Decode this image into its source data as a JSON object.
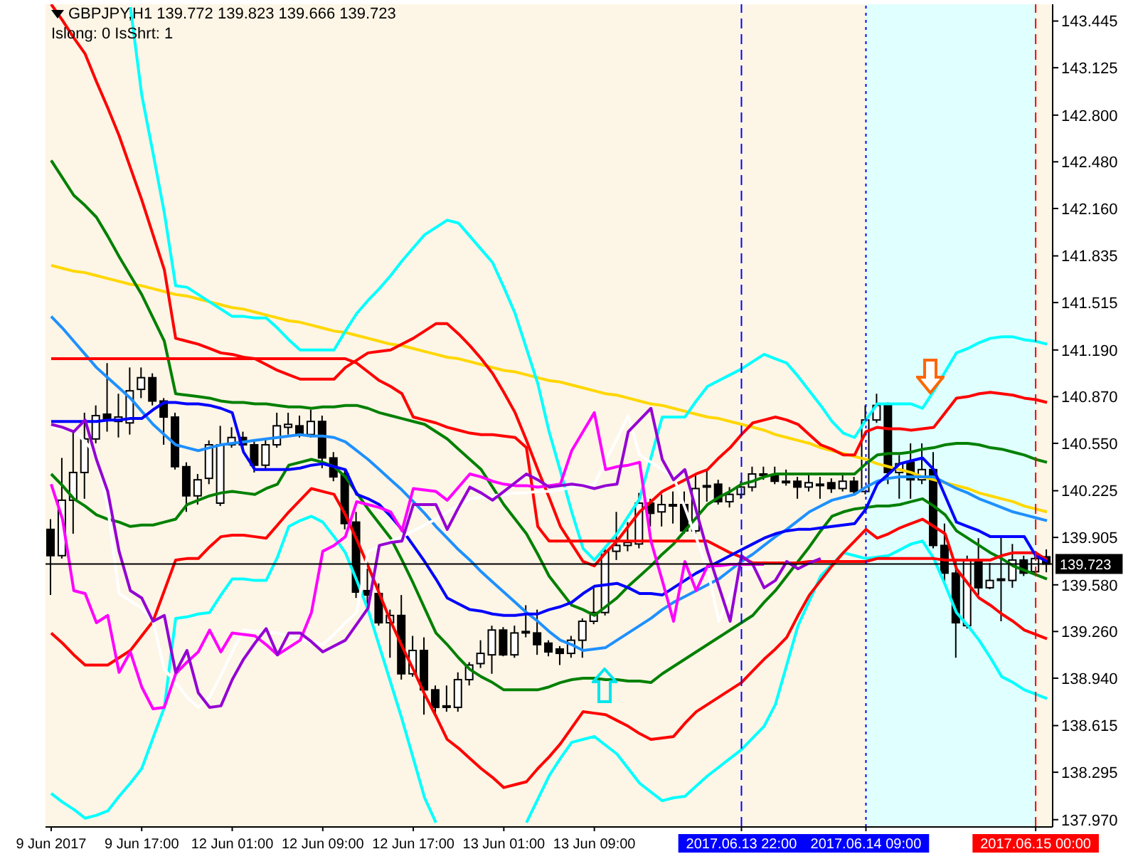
{
  "chart_data": {
    "type": "candlestick",
    "title": "GBPJPY,H1 139.772 139.823 139.666 139.723",
    "subtitle": "Islong: 0 IsShrt: 1",
    "color": "#000000",
    "categories": [
      "9 Jun 2017",
      null,
      null,
      null,
      null,
      null,
      null,
      null,
      "9 Jun 17:00",
      null,
      null,
      null,
      null,
      null,
      null,
      null,
      "12 Jun 01:00",
      null,
      null,
      null,
      null,
      null,
      null,
      null,
      "12 Jun 09:00",
      null,
      null,
      null,
      null,
      null,
      null,
      null,
      "12 Jun 17:00",
      null,
      null,
      null,
      null,
      null,
      null,
      null,
      "13 Jun 01:00",
      null,
      null,
      null,
      null,
      null,
      null,
      null,
      "13 Jun 09:00",
      null,
      null,
      null,
      null,
      null,
      null,
      null,
      null,
      null,
      null,
      null,
      null,
      "2017.06.13 22:00",
      null,
      null,
      null,
      null,
      null,
      null,
      null,
      null,
      null,
      null,
      "2017.06.14 09:00",
      null,
      null,
      null,
      null,
      null,
      null,
      null,
      null,
      null,
      null,
      null,
      null,
      null,
      null,
      "2017.06.15 00:00",
      null
    ],
    "ohlc": [
      [
        139.96,
        140.03,
        139.51,
        139.78
      ],
      [
        139.78,
        140.45,
        139.76,
        140.16
      ],
      [
        140.16,
        140.63,
        139.93,
        140.35
      ],
      [
        140.35,
        140.76,
        140.17,
        140.58
      ],
      [
        140.58,
        140.81,
        140.55,
        140.74
      ],
      [
        140.75,
        141.1,
        140.63,
        140.71
      ],
      [
        140.7,
        140.89,
        140.59,
        140.73
      ],
      [
        140.69,
        141.07,
        140.61,
        140.91
      ],
      [
        140.92,
        141.07,
        140.86,
        141.0
      ],
      [
        141.0,
        141.03,
        140.81,
        140.84
      ],
      [
        140.84,
        140.86,
        140.54,
        140.73
      ],
      [
        140.73,
        140.76,
        140.37,
        140.39
      ],
      [
        140.39,
        140.42,
        140.08,
        140.19
      ],
      [
        140.19,
        140.34,
        140.13,
        140.3
      ],
      [
        140.31,
        140.57,
        140.27,
        140.54
      ],
      [
        140.14,
        140.67,
        140.12,
        140.54
      ],
      [
        140.54,
        140.66,
        140.52,
        140.59
      ],
      [
        140.59,
        140.63,
        140.51,
        140.54
      ],
      [
        140.54,
        140.57,
        140.35,
        140.4
      ],
      [
        140.4,
        140.58,
        140.37,
        140.54
      ],
      [
        140.54,
        140.76,
        140.52,
        140.67
      ],
      [
        140.66,
        140.76,
        140.61,
        140.68
      ],
      [
        140.67,
        140.74,
        140.59,
        140.61
      ],
      [
        140.61,
        140.78,
        140.59,
        140.7
      ],
      [
        140.7,
        140.74,
        140.38,
        140.45
      ],
      [
        140.45,
        140.49,
        140.29,
        140.32
      ],
      [
        140.34,
        140.37,
        139.96,
        140.0
      ],
      [
        140.01,
        140.08,
        139.49,
        139.53
      ],
      [
        139.54,
        139.69,
        139.44,
        139.51
      ],
      [
        139.52,
        139.59,
        139.3,
        139.32
      ],
      [
        139.32,
        139.41,
        139.08,
        139.37
      ],
      [
        139.37,
        139.51,
        138.93,
        138.97
      ],
      [
        138.97,
        139.23,
        138.95,
        139.13
      ],
      [
        139.13,
        139.22,
        138.69,
        138.86
      ],
      [
        138.86,
        138.89,
        138.68,
        138.74
      ],
      [
        138.75,
        138.89,
        138.71,
        138.74
      ],
      [
        138.74,
        138.98,
        138.71,
        138.93
      ],
      [
        138.93,
        139.05,
        138.89,
        139.03
      ],
      [
        139.04,
        139.2,
        139.01,
        139.11
      ],
      [
        139.1,
        139.3,
        138.97,
        139.27
      ],
      [
        139.27,
        139.29,
        139.09,
        139.1
      ],
      [
        139.1,
        139.3,
        139.08,
        139.25
      ],
      [
        139.26,
        139.44,
        139.22,
        139.25
      ],
      [
        139.25,
        139.41,
        139.1,
        139.17
      ],
      [
        139.18,
        139.2,
        139.09,
        139.12
      ],
      [
        139.14,
        139.16,
        139.03,
        139.11
      ],
      [
        139.11,
        139.23,
        139.08,
        139.2
      ],
      [
        139.2,
        139.35,
        139.08,
        139.33
      ],
      [
        139.33,
        139.57,
        139.31,
        139.39
      ],
      [
        139.39,
        139.83,
        139.37,
        139.81
      ],
      [
        139.81,
        140.08,
        139.75,
        139.85
      ],
      [
        139.85,
        140.01,
        139.81,
        139.87
      ],
      [
        139.86,
        140.21,
        139.83,
        140.14
      ],
      [
        140.14,
        140.17,
        139.98,
        140.07
      ],
      [
        140.08,
        140.2,
        139.98,
        140.13
      ],
      [
        140.13,
        140.22,
        140.0,
        140.12
      ],
      [
        140.13,
        140.22,
        139.93,
        139.95
      ],
      [
        139.95,
        140.34,
        139.9,
        140.24
      ],
      [
        140.25,
        140.37,
        140.15,
        140.26
      ],
      [
        140.27,
        140.3,
        140.13,
        140.15
      ],
      [
        140.15,
        140.25,
        140.11,
        140.2
      ],
      [
        140.2,
        140.29,
        140.17,
        140.25
      ],
      [
        140.25,
        140.39,
        140.22,
        140.34
      ],
      [
        140.33,
        140.39,
        140.3,
        140.34
      ],
      [
        140.33,
        140.39,
        140.27,
        140.29
      ],
      [
        140.29,
        140.37,
        140.26,
        140.28
      ],
      [
        140.29,
        140.32,
        140.17,
        140.25
      ],
      [
        140.25,
        140.34,
        140.22,
        140.28
      ],
      [
        140.26,
        140.32,
        140.17,
        140.27
      ],
      [
        140.28,
        140.31,
        140.21,
        140.24
      ],
      [
        140.24,
        140.33,
        140.22,
        140.29
      ],
      [
        140.29,
        140.32,
        140.2,
        140.22
      ],
      [
        140.22,
        140.81,
        140.2,
        140.71
      ],
      [
        140.71,
        140.89,
        140.69,
        140.81
      ],
      [
        140.81,
        140.83,
        140.27,
        140.35
      ],
      [
        140.35,
        140.47,
        140.17,
        140.41
      ],
      [
        140.42,
        140.55,
        140.17,
        140.3
      ],
      [
        140.3,
        140.55,
        140.27,
        140.37
      ],
      [
        140.37,
        140.49,
        139.83,
        139.85
      ],
      [
        139.85,
        140.0,
        139.59,
        139.66
      ],
      [
        139.66,
        139.74,
        139.08,
        139.32
      ],
      [
        139.3,
        139.78,
        139.28,
        139.75
      ],
      [
        139.75,
        139.9,
        139.51,
        139.56
      ],
      [
        139.56,
        139.73,
        139.55,
        139.61
      ],
      [
        139.61,
        139.91,
        139.33,
        139.62
      ],
      [
        139.61,
        139.86,
        139.56,
        139.75
      ],
      [
        139.75,
        139.78,
        139.64,
        139.66
      ],
      [
        139.67,
        139.8,
        139.66,
        139.76
      ],
      [
        139.772,
        139.823,
        139.666,
        139.723
      ]
    ],
    "ylim": [
      137.92,
      143.56
    ],
    "yticks": [
      {
        "value": 137.97,
        "label": "137.970"
      },
      {
        "value": 138.295,
        "label": "138.295"
      },
      {
        "value": 138.615,
        "label": "138.615"
      },
      {
        "value": 138.94,
        "label": "138.940"
      },
      {
        "value": 139.26,
        "label": "139.260"
      },
      {
        "value": 139.58,
        "label": "139.580"
      },
      {
        "value": 139.905,
        "label": "139.905"
      },
      {
        "value": 140.225,
        "label": "140.225"
      },
      {
        "value": 140.55,
        "label": "140.550"
      },
      {
        "value": 140.87,
        "label": "140.870"
      },
      {
        "value": 141.19,
        "label": "141.190"
      },
      {
        "value": 141.515,
        "label": "141.515"
      },
      {
        "value": 141.835,
        "label": "141.835"
      },
      {
        "value": 142.16,
        "label": "142.160"
      },
      {
        "value": 142.48,
        "label": "142.480"
      },
      {
        "value": 142.8,
        "label": "142.800"
      },
      {
        "value": 143.125,
        "label": "143.125"
      },
      {
        "value": 143.445,
        "label": "143.445"
      }
    ],
    "marker": "none",
    "series": [
      {
        "type": "line",
        "color": "#ffd700",
        "values": [
          141.77,
          141.75,
          141.73,
          141.72,
          141.7,
          141.68,
          141.66,
          141.64,
          141.63,
          141.61,
          141.59,
          141.57,
          141.56,
          141.54,
          141.52,
          141.5,
          141.48,
          141.47,
          141.45,
          141.43,
          141.41,
          141.39,
          141.38,
          141.36,
          141.34,
          141.32,
          141.31,
          141.29,
          141.27,
          141.25,
          141.23,
          141.22,
          141.2,
          141.18,
          141.16,
          141.14,
          141.13,
          141.11,
          141.09,
          141.07,
          141.05,
          141.04,
          141.02,
          141.0,
          140.98,
          140.97,
          140.95,
          140.93,
          140.91,
          140.89,
          140.88,
          140.86,
          140.84,
          140.82,
          140.81,
          140.79,
          140.77,
          140.75,
          140.73,
          140.72,
          140.7,
          140.68,
          140.66,
          140.64,
          140.61,
          140.59,
          140.57,
          140.55,
          140.52,
          140.5,
          140.48,
          140.46,
          140.44,
          140.41,
          140.39,
          140.37,
          140.35,
          140.32,
          140.3,
          140.28,
          140.26,
          140.24,
          140.21,
          140.19,
          140.17,
          140.15,
          140.12,
          140.1,
          140.08
        ]
      },
      {
        "type": "line",
        "color": "#00ffff",
        "values": [
          null,
          null,
          null,
          null,
          null,
          null,
          null,
          143.54,
          142.94,
          142.54,
          142.13,
          141.63,
          141.62,
          141.57,
          141.52,
          141.47,
          141.42,
          141.42,
          141.41,
          141.41,
          141.34,
          141.26,
          141.19,
          141.19,
          141.19,
          141.19,
          141.32,
          141.44,
          141.53,
          141.61,
          141.7,
          141.8,
          141.89,
          141.98,
          142.03,
          142.08,
          142.06,
          141.97,
          141.88,
          141.79,
          141.62,
          141.44,
          141.2,
          140.96,
          140.63,
          140.36,
          140.08,
          139.83,
          139.75,
          139.84,
          139.93,
          140.05,
          140.17,
          140.45,
          140.73,
          140.73,
          140.73,
          140.84,
          140.94,
          140.98,
          141.02,
          141.06,
          141.11,
          141.16,
          141.13,
          141.1,
          141.01,
          140.91,
          140.81,
          140.7,
          140.62,
          140.59,
          140.71,
          140.82,
          140.82,
          140.82,
          140.82,
          140.79,
          140.91,
          141.04,
          141.17,
          141.2,
          141.24,
          141.27,
          141.28,
          141.28,
          141.26,
          141.25,
          141.23
        ]
      },
      {
        "type": "line",
        "color": "#00ffff",
        "values": [
          138.15,
          138.09,
          138.04,
          137.98,
          138.0,
          138.03,
          138.13,
          138.22,
          138.32,
          138.53,
          138.74,
          139.35,
          139.36,
          139.38,
          139.39,
          139.51,
          139.62,
          139.62,
          139.61,
          139.61,
          139.77,
          139.98,
          140.02,
          140.05,
          140.01,
          139.91,
          139.8,
          139.61,
          139.41,
          139.16,
          138.91,
          138.66,
          138.39,
          138.12,
          137.95,
          null,
          null,
          null,
          null,
          null,
          null,
          null,
          137.95,
          138.11,
          138.27,
          138.39,
          138.5,
          138.52,
          138.54,
          138.48,
          138.42,
          138.32,
          138.22,
          138.16,
          138.1,
          138.12,
          138.13,
          138.2,
          138.27,
          138.33,
          138.39,
          138.45,
          138.53,
          138.61,
          138.76,
          139.03,
          139.3,
          139.47,
          139.64,
          139.72,
          139.8,
          139.78,
          139.76,
          139.77,
          139.78,
          139.82,
          139.86,
          139.88,
          139.76,
          139.58,
          139.39,
          139.3,
          139.2,
          139.08,
          138.95,
          138.91,
          138.86,
          138.83,
          138.8
        ]
      },
      {
        "type": "line",
        "color": "#ff0000",
        "values": [
          143.56,
          143.45,
          143.33,
          143.22,
          143.03,
          142.85,
          142.66,
          142.44,
          142.22,
          141.98,
          141.74,
          141.27,
          141.25,
          141.23,
          141.2,
          141.17,
          141.16,
          141.14,
          141.13,
          141.09,
          141.05,
          141.02,
          140.99,
          140.99,
          140.99,
          140.99,
          141.07,
          141.12,
          141.17,
          141.18,
          141.19,
          141.23,
          141.27,
          141.32,
          141.37,
          141.37,
          141.3,
          141.22,
          141.13,
          141.03,
          140.9,
          140.76,
          140.57,
          140.37,
          140.18,
          139.98,
          139.86,
          139.74,
          139.71,
          139.8,
          139.88,
          139.98,
          140.08,
          140.15,
          140.22,
          140.26,
          140.3,
          140.34,
          140.37,
          140.45,
          140.52,
          140.61,
          140.69,
          140.71,
          140.73,
          140.71,
          140.68,
          140.61,
          140.54,
          140.51,
          140.47,
          140.47,
          140.63,
          140.66,
          140.65,
          140.65,
          140.64,
          140.65,
          140.66,
          140.76,
          140.86,
          140.87,
          140.89,
          140.9,
          140.89,
          140.88,
          140.86,
          140.85,
          140.83
        ]
      },
      {
        "type": "line",
        "color": "#ff0000",
        "values": [
          139.25,
          139.18,
          139.1,
          139.03,
          139.03,
          139.03,
          139.08,
          139.13,
          139.23,
          139.33,
          139.54,
          139.75,
          139.76,
          139.76,
          139.84,
          139.91,
          139.92,
          139.92,
          139.91,
          139.9,
          139.99,
          140.08,
          140.16,
          140.24,
          140.22,
          140.2,
          140.06,
          139.89,
          139.71,
          139.52,
          139.33,
          139.16,
          139.0,
          138.83,
          138.68,
          138.52,
          138.46,
          138.39,
          138.32,
          138.26,
          138.19,
          138.21,
          138.23,
          138.32,
          138.4,
          138.49,
          138.6,
          138.71,
          138.7,
          138.69,
          138.65,
          138.61,
          138.56,
          138.52,
          138.53,
          138.54,
          138.63,
          138.71,
          138.76,
          138.81,
          138.86,
          138.91,
          138.99,
          139.07,
          139.14,
          139.22,
          139.37,
          139.51,
          139.61,
          139.71,
          139.8,
          139.88,
          139.96,
          139.9,
          139.93,
          139.97,
          140.0,
          140.03,
          139.98,
          139.93,
          139.69,
          139.59,
          139.49,
          139.44,
          139.38,
          139.33,
          139.27,
          139.24,
          139.21
        ]
      },
      {
        "type": "line",
        "color": "#008000",
        "values": [
          142.49,
          142.37,
          142.25,
          142.18,
          142.1,
          141.97,
          141.83,
          141.7,
          141.57,
          141.41,
          141.25,
          140.89,
          140.88,
          140.87,
          140.86,
          140.84,
          140.83,
          140.83,
          140.82,
          140.82,
          140.81,
          140.8,
          140.8,
          140.79,
          140.8,
          140.8,
          140.81,
          140.81,
          140.79,
          140.76,
          140.74,
          140.72,
          140.7,
          140.68,
          140.63,
          140.58,
          140.51,
          140.44,
          140.37,
          140.25,
          140.13,
          140.03,
          139.93,
          139.79,
          139.64,
          139.54,
          139.44,
          139.41,
          139.37,
          139.43,
          139.49,
          139.57,
          139.64,
          139.71,
          139.79,
          139.86,
          139.95,
          140.04,
          140.13,
          140.18,
          140.22,
          140.27,
          140.29,
          140.32,
          140.34,
          140.34,
          140.34,
          140.34,
          140.34,
          140.34,
          140.34,
          140.34,
          140.41,
          140.47,
          140.48,
          140.48,
          140.49,
          140.51,
          140.52,
          140.54,
          140.55,
          140.55,
          140.54,
          140.52,
          140.51,
          140.49,
          140.47,
          140.44,
          140.42
        ]
      },
      {
        "type": "line",
        "color": "#008000",
        "values": [
          140.34,
          140.26,
          140.17,
          140.12,
          140.06,
          140.03,
          140.01,
          139.98,
          139.99,
          139.99,
          140.01,
          140.03,
          140.13,
          140.16,
          140.19,
          140.21,
          140.22,
          140.21,
          140.2,
          140.24,
          140.27,
          140.4,
          140.42,
          140.44,
          140.42,
          140.39,
          140.32,
          140.21,
          140.1,
          140.0,
          139.9,
          139.75,
          139.59,
          139.42,
          139.25,
          139.17,
          139.08,
          139.0,
          138.95,
          138.91,
          138.86,
          138.86,
          138.86,
          138.86,
          138.88,
          138.91,
          138.93,
          138.94,
          138.94,
          138.93,
          138.93,
          138.92,
          138.92,
          138.91,
          138.97,
          139.02,
          139.07,
          139.12,
          139.17,
          139.22,
          139.27,
          139.32,
          139.37,
          139.46,
          139.54,
          139.64,
          139.74,
          139.84,
          139.95,
          140.05,
          140.08,
          140.1,
          140.11,
          140.12,
          140.12,
          140.13,
          140.15,
          140.17,
          140.12,
          140.06,
          139.95,
          139.9,
          139.85,
          139.8,
          139.76,
          139.71,
          139.68,
          139.65,
          139.62
        ]
      },
      {
        "type": "line",
        "color": "#1e90ff",
        "values": [
          141.42,
          141.34,
          141.25,
          141.16,
          141.07,
          141.0,
          140.93,
          140.86,
          140.77,
          140.68,
          140.61,
          140.54,
          140.52,
          140.5,
          140.52,
          140.54,
          140.55,
          140.56,
          140.57,
          140.58,
          140.59,
          140.6,
          140.61,
          140.6,
          140.6,
          140.59,
          140.56,
          140.5,
          140.44,
          140.37,
          140.3,
          140.23,
          140.15,
          140.07,
          139.98,
          139.9,
          139.82,
          139.75,
          139.67,
          139.6,
          139.53,
          139.46,
          139.39,
          139.33,
          139.26,
          139.2,
          139.17,
          139.13,
          139.14,
          139.15,
          139.2,
          139.25,
          139.3,
          139.35,
          139.41,
          139.46,
          139.5,
          139.54,
          139.58,
          139.62,
          139.68,
          139.74,
          139.79,
          139.85,
          139.91,
          139.96,
          140.02,
          140.08,
          140.12,
          140.16,
          140.18,
          140.2,
          140.25,
          140.29,
          140.31,
          140.32,
          140.32,
          140.32,
          140.32,
          140.28,
          140.24,
          140.21,
          140.17,
          140.14,
          140.11,
          140.08,
          140.06,
          140.04,
          140.02
        ]
      },
      {
        "type": "line",
        "color": "#ff0000",
        "values": [
          141.13,
          141.13,
          141.13,
          141.13,
          141.13,
          141.13,
          141.13,
          141.13,
          141.13,
          141.13,
          141.13,
          141.13,
          141.13,
          141.13,
          141.13,
          141.13,
          141.13,
          141.13,
          141.13,
          141.13,
          141.13,
          141.13,
          141.13,
          141.13,
          141.13,
          141.13,
          141.13,
          141.1,
          141.04,
          140.98,
          140.94,
          140.89,
          140.73,
          140.71,
          140.69,
          140.66,
          140.64,
          140.62,
          140.61,
          140.61,
          140.6,
          140.59,
          140.52,
          139.98,
          139.88,
          139.88,
          139.88,
          139.88,
          139.88,
          139.88,
          139.88,
          139.88,
          139.88,
          139.88,
          139.88,
          139.88,
          139.88,
          139.88,
          139.88,
          139.84,
          139.8,
          139.77,
          139.73,
          139.73,
          139.73,
          139.73,
          139.73,
          139.74,
          139.74,
          139.74,
          139.74,
          139.74,
          139.74,
          139.76,
          139.76,
          139.76,
          139.76,
          139.76,
          139.76,
          139.75,
          139.75,
          139.75,
          139.75,
          139.75,
          139.78,
          139.8,
          139.8,
          139.8,
          139.75
        ]
      },
      {
        "type": "line",
        "color": "#0000ff",
        "values": [
          140.7,
          140.7,
          140.7,
          140.7,
          140.7,
          140.71,
          140.71,
          140.72,
          140.72,
          140.78,
          140.83,
          140.83,
          140.82,
          140.82,
          140.81,
          140.79,
          140.76,
          140.49,
          140.37,
          140.37,
          140.37,
          140.37,
          140.38,
          140.4,
          140.41,
          140.39,
          140.37,
          140.2,
          140.17,
          140.13,
          140.05,
          139.96,
          139.85,
          139.74,
          139.62,
          139.49,
          139.45,
          139.41,
          139.4,
          139.38,
          139.37,
          139.37,
          139.38,
          139.38,
          139.41,
          139.43,
          139.46,
          139.52,
          139.57,
          139.58,
          139.59,
          139.56,
          139.52,
          139.52,
          139.51,
          139.56,
          139.61,
          139.66,
          139.7,
          139.74,
          139.78,
          139.82,
          139.86,
          139.9,
          139.93,
          139.95,
          139.96,
          139.96,
          139.97,
          139.98,
          139.99,
          140.0,
          140.1,
          140.27,
          140.34,
          140.41,
          140.43,
          140.45,
          140.37,
          140.19,
          140.01,
          139.98,
          139.95,
          139.91,
          139.91,
          139.91,
          139.91,
          139.78,
          139.74
        ]
      },
      {
        "type": "line",
        "color": "#ffffff",
        "values": [
          140.66,
          140.65,
          140.64,
          140.56,
          140.47,
          140.11,
          139.52,
          139.47,
          139.42,
          139.33,
          139.0,
          138.91,
          138.81,
          138.74,
          138.81,
          138.96,
          139.12,
          139.27,
          139.26,
          139.26,
          139.25,
          139.23,
          139.2,
          139.19,
          139.17,
          139.24,
          139.32,
          139.39,
          139.81,
          139.84,
          139.88,
          139.91,
          139.95,
          139.99,
          140.03,
          140.08,
          140.12,
          140.17,
          140.18,
          140.19,
          140.2,
          140.21,
          140.21,
          140.22,
          140.22,
          140.23,
          140.25,
          140.26,
          140.27,
          140.43,
          140.58,
          140.74,
          140.47,
          140.42,
          140.37,
          140.32,
          140.11,
          139.9,
          139.69,
          139.33,
          139.51,
          139.69,
          139.69,
          139.69,
          null,
          null,
          null,
          null,
          null,
          null,
          null,
          null,
          null,
          null,
          null,
          null,
          null,
          null,
          null,
          null,
          null,
          null,
          null,
          null,
          null,
          null,
          null,
          null,
          null
        ]
      },
      {
        "type": "line",
        "color": "#ff00ff",
        "values": [
          140.27,
          140.03,
          139.54,
          139.52,
          139.32,
          139.37,
          138.98,
          139.12,
          138.88,
          138.73,
          138.74,
          138.97,
          139.05,
          139.12,
          139.27,
          139.12,
          139.25,
          139.24,
          139.23,
          139.17,
          139.1,
          139.15,
          139.2,
          139.39,
          139.81,
          139.85,
          139.91,
          140.15,
          140.13,
          140.11,
          140.08,
          139.95,
          140.24,
          140.23,
          140.22,
          140.16,
          140.25,
          140.34,
          140.32,
          140.29,
          140.27,
          140.26,
          140.26,
          140.25,
          140.26,
          140.27,
          140.5,
          140.63,
          140.76,
          140.37,
          140.39,
          140.4,
          140.42,
          139.88,
          139.61,
          139.33,
          139.74,
          139.54,
          139.71,
          139.71,
          139.72,
          139.72,
          139.72,
          139.72,
          null,
          null,
          null,
          null,
          null,
          null,
          null,
          null,
          null,
          null,
          null,
          null,
          null,
          null,
          null,
          null,
          null,
          null,
          null,
          null,
          null,
          null,
          null,
          null,
          null
        ]
      },
      {
        "type": "line",
        "color": "#9400d3",
        "values": [
          140.68,
          140.66,
          140.63,
          140.71,
          140.44,
          140.22,
          139.81,
          139.54,
          139.49,
          139.33,
          139.37,
          138.98,
          139.13,
          138.84,
          138.74,
          138.75,
          138.93,
          139.07,
          139.18,
          139.28,
          139.1,
          139.25,
          139.25,
          139.19,
          139.12,
          139.16,
          139.2,
          139.31,
          139.42,
          139.85,
          139.87,
          139.88,
          140.13,
          140.13,
          140.13,
          139.96,
          140.11,
          140.25,
          140.21,
          140.16,
          140.22,
          140.28,
          140.34,
          140.3,
          140.25,
          140.26,
          140.27,
          140.26,
          140.24,
          140.26,
          140.27,
          140.63,
          140.71,
          140.79,
          140.44,
          140.3,
          140.37,
          140.09,
          139.81,
          139.57,
          139.33,
          139.78,
          139.72,
          139.56,
          139.61,
          139.74,
          139.69,
          139.73,
          139.76,
          null,
          null,
          null,
          null,
          null,
          null,
          null,
          null,
          null,
          null,
          null,
          null,
          null,
          null,
          null,
          null,
          null,
          null,
          null,
          null
        ]
      }
    ],
    "ref_lines": [
      {
        "axis": "y",
        "value": 139.723,
        "label": "139.723",
        "color": "#000000",
        "line_style": "solid"
      },
      {
        "axis": "x",
        "value": "2017.06.13 22:00",
        "color": "#0000ff",
        "line_style": "dashed"
      },
      {
        "axis": "x",
        "value": "2017.06.14 09:00",
        "color": "#0000ff",
        "line_style": "dotted"
      },
      {
        "axis": "x",
        "value": "2017.06.15 00:00",
        "color": "#ff0000",
        "line_style": "dashed"
      }
    ],
    "bands": [
      {
        "axis": "x",
        "from": "2017.06.14 09:00",
        "to": "2017.06.15 00:00",
        "color": "#e0ffff"
      }
    ]
  }
}
